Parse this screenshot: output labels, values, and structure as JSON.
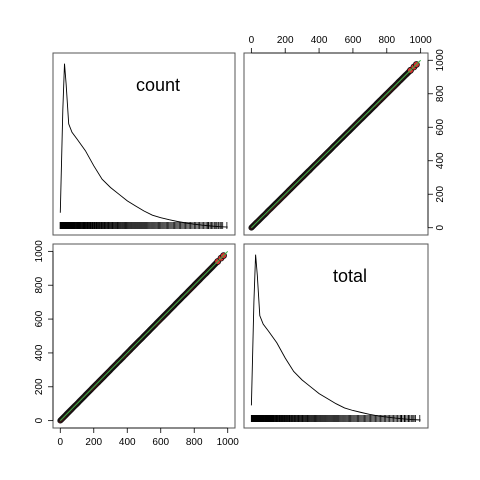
{
  "chart_data": {
    "type": "scatter",
    "variables": [
      "count",
      "total"
    ],
    "axis_ticks": [
      0,
      200,
      400,
      600,
      800,
      1000
    ],
    "xlim": [
      0,
      1000
    ],
    "ylim": [
      0,
      1000
    ],
    "point_fill_color": "#d4302f",
    "point_edge_color": "#111111",
    "smooth_line_color": "#3bb44a",
    "density_line_color": "#000000",
    "panels": [
      {
        "row": 1,
        "col": 1,
        "type": "density",
        "variable": "count"
      },
      {
        "row": 1,
        "col": 2,
        "type": "scatter",
        "x": "total",
        "y": "count",
        "points": [
          [
            0,
            0
          ],
          [
            100,
            100
          ],
          [
            200,
            200
          ],
          [
            300,
            300
          ],
          [
            400,
            400
          ],
          [
            500,
            500
          ],
          [
            600,
            600
          ],
          [
            700,
            700
          ],
          [
            800,
            800
          ],
          [
            900,
            900
          ],
          [
            940,
            940
          ],
          [
            960,
            960
          ],
          [
            975,
            975
          ]
        ]
      },
      {
        "row": 2,
        "col": 1,
        "type": "scatter",
        "x": "count",
        "y": "total",
        "points": [
          [
            0,
            0
          ],
          [
            100,
            100
          ],
          [
            200,
            200
          ],
          [
            300,
            300
          ],
          [
            400,
            400
          ],
          [
            500,
            500
          ],
          [
            600,
            600
          ],
          [
            700,
            700
          ],
          [
            800,
            800
          ],
          [
            900,
            900
          ],
          [
            940,
            940
          ],
          [
            960,
            960
          ],
          [
            975,
            975
          ]
        ]
      },
      {
        "row": 2,
        "col": 2,
        "type": "density",
        "variable": "total"
      }
    ],
    "density_curve": {
      "x": [
        0,
        15,
        25,
        35,
        50,
        70,
        100,
        150,
        200,
        250,
        300,
        350,
        400,
        450,
        500,
        550,
        600,
        650,
        700,
        750,
        800,
        850,
        900,
        950,
        1000
      ],
      "y": [
        0.09,
        0.7,
        0.98,
        0.86,
        0.62,
        0.57,
        0.53,
        0.46,
        0.37,
        0.29,
        0.24,
        0.2,
        0.16,
        0.13,
        0.1,
        0.075,
        0.06,
        0.048,
        0.037,
        0.028,
        0.021,
        0.015,
        0.01,
        0.006,
        0.004
      ]
    },
    "title": "",
    "xlabel": "",
    "ylabel": ""
  }
}
